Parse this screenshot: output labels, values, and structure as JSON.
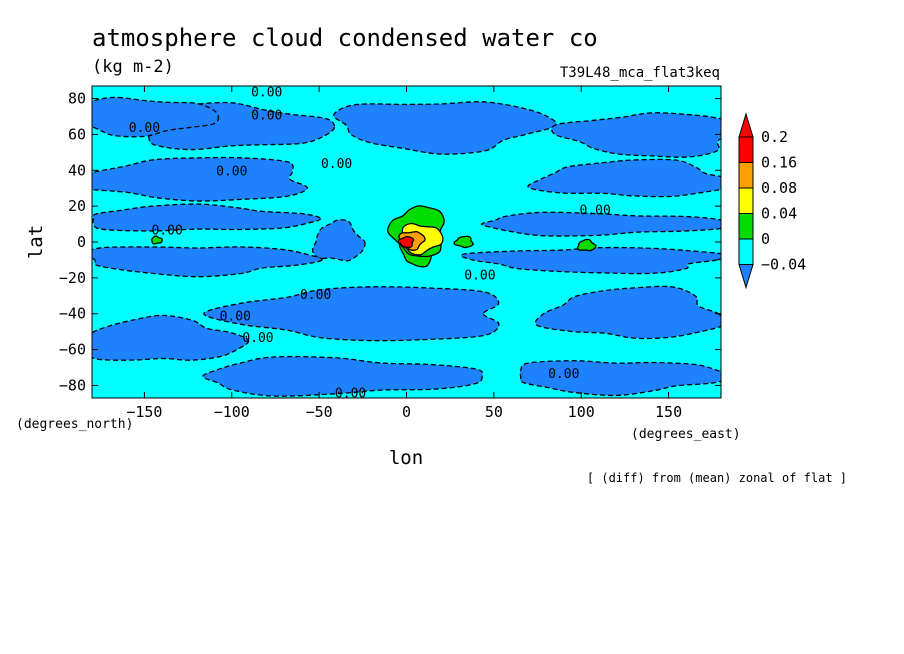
{
  "chart_data": {
    "type": "heatmap",
    "title": "atmosphere cloud condensed water co",
    "units": "(kg m-2)",
    "run_label": "T39L48_mca_flat3keq",
    "xlabel": "lon",
    "ylabel": "lat",
    "x_unit_label": "(degrees_east)",
    "y_unit_label": "(degrees_north)",
    "note": "[ (diff) from (mean) zonal of flat ]",
    "xlim": [
      -180,
      180
    ],
    "ylim": [
      -87,
      87
    ],
    "x_ticks": [
      -150,
      -100,
      -50,
      0,
      50,
      100,
      150
    ],
    "y_ticks": [
      -80,
      -60,
      -40,
      -20,
      0,
      20,
      40,
      60,
      80
    ],
    "levels": [
      -0.04,
      0,
      0.04,
      0.08,
      0.16,
      0.2
    ],
    "level_colors": [
      "#1e82ff",
      "#00ffff",
      "#00dc00",
      "#ffff00",
      "#ffa000",
      "#ff0000"
    ],
    "below_color": "#1e82ff",
    "above_color": "#ff0000",
    "contour_labels": [
      {
        "lon": -80,
        "lat": 84,
        "text": "0.00"
      },
      {
        "lon": -80,
        "lat": 71,
        "text": "0.00"
      },
      {
        "lon": -150,
        "lat": 64,
        "text": "0.00"
      },
      {
        "lon": -100,
        "lat": 40,
        "text": "0.00"
      },
      {
        "lon": -40,
        "lat": 44,
        "text": "0.00"
      },
      {
        "lon": -137,
        "lat": 7,
        "text": "0.00"
      },
      {
        "lon": 108,
        "lat": 18,
        "text": "0.00"
      },
      {
        "lon": 42,
        "lat": -18,
        "text": "0.00"
      },
      {
        "lon": -52,
        "lat": -29,
        "text": "0.00"
      },
      {
        "lon": -98,
        "lat": -41,
        "text": "0.00"
      },
      {
        "lon": -85,
        "lat": -53,
        "text": "0.00"
      },
      {
        "lon": -32,
        "lat": -84,
        "text": "0.00"
      },
      {
        "lon": 90,
        "lat": -73,
        "text": "0.00"
      }
    ],
    "regions": [
      {
        "level": -0.04,
        "shape": "blob",
        "lon": -39,
        "lat": 0,
        "rx": 14,
        "ry": 11
      },
      {
        "level": -0.04,
        "shape": "blob",
        "lon": -100,
        "lat": 64,
        "rx": 55,
        "ry": 12
      },
      {
        "level": -0.04,
        "shape": "blob",
        "lon": -150,
        "lat": 70,
        "rx": 40,
        "ry": 10
      },
      {
        "level": -0.04,
        "shape": "blob",
        "lon": 20,
        "lat": 65,
        "rx": 60,
        "ry": 14
      },
      {
        "level": -0.04,
        "shape": "blob",
        "lon": 140,
        "lat": 60,
        "rx": 50,
        "ry": 12
      },
      {
        "level": -0.04,
        "shape": "blob",
        "lon": -120,
        "lat": 35,
        "rx": 65,
        "ry": 12
      },
      {
        "level": -0.04,
        "shape": "blob",
        "lon": 130,
        "lat": 35,
        "rx": 55,
        "ry": 10
      },
      {
        "level": -0.04,
        "shape": "blob",
        "lon": -120,
        "lat": 13,
        "rx": 65,
        "ry": 7
      },
      {
        "level": -0.04,
        "shape": "blob",
        "lon": 110,
        "lat": 10,
        "rx": 70,
        "ry": 6
      },
      {
        "level": -0.04,
        "shape": "blob",
        "lon": -120,
        "lat": -10,
        "rx": 65,
        "ry": 8
      },
      {
        "level": -0.04,
        "shape": "blob",
        "lon": 110,
        "lat": -10,
        "rx": 70,
        "ry": 7
      },
      {
        "level": -0.04,
        "shape": "blob",
        "lon": -20,
        "lat": -40,
        "rx": 80,
        "ry": 15
      },
      {
        "level": -0.04,
        "shape": "blob",
        "lon": 130,
        "lat": -40,
        "rx": 50,
        "ry": 14
      },
      {
        "level": -0.04,
        "shape": "blob",
        "lon": -140,
        "lat": -55,
        "rx": 45,
        "ry": 12
      },
      {
        "level": -0.04,
        "shape": "blob",
        "lon": -40,
        "lat": -75,
        "rx": 80,
        "ry": 10
      },
      {
        "level": -0.04,
        "shape": "blob",
        "lon": 120,
        "lat": -75,
        "rx": 60,
        "ry": 9
      },
      {
        "level": 0.04,
        "shape": "blob",
        "lon": 7,
        "lat": -5,
        "rx": 10,
        "ry": 8
      },
      {
        "level": 0.04,
        "shape": "blob",
        "lon": 7,
        "lat": 6,
        "rx": 15,
        "ry": 14
      },
      {
        "level": 0.04,
        "shape": "blob",
        "lon": 33,
        "lat": 0,
        "rx": 5,
        "ry": 3
      },
      {
        "level": 0.04,
        "shape": "blob",
        "lon": 103,
        "lat": -2,
        "rx": 5,
        "ry": 3
      },
      {
        "level": 0.04,
        "shape": "blob",
        "lon": -143,
        "lat": 1,
        "rx": 3,
        "ry": 2
      },
      {
        "level": 0.08,
        "shape": "blob",
        "lon": 8,
        "lat": 2,
        "rx": 12,
        "ry": 8
      },
      {
        "level": 0.16,
        "shape": "blob",
        "lon": 3,
        "lat": 1,
        "rx": 7,
        "ry": 5
      },
      {
        "level": 0.2,
        "shape": "blob",
        "lon": 0,
        "lat": 0,
        "rx": 4,
        "ry": 3
      }
    ]
  }
}
